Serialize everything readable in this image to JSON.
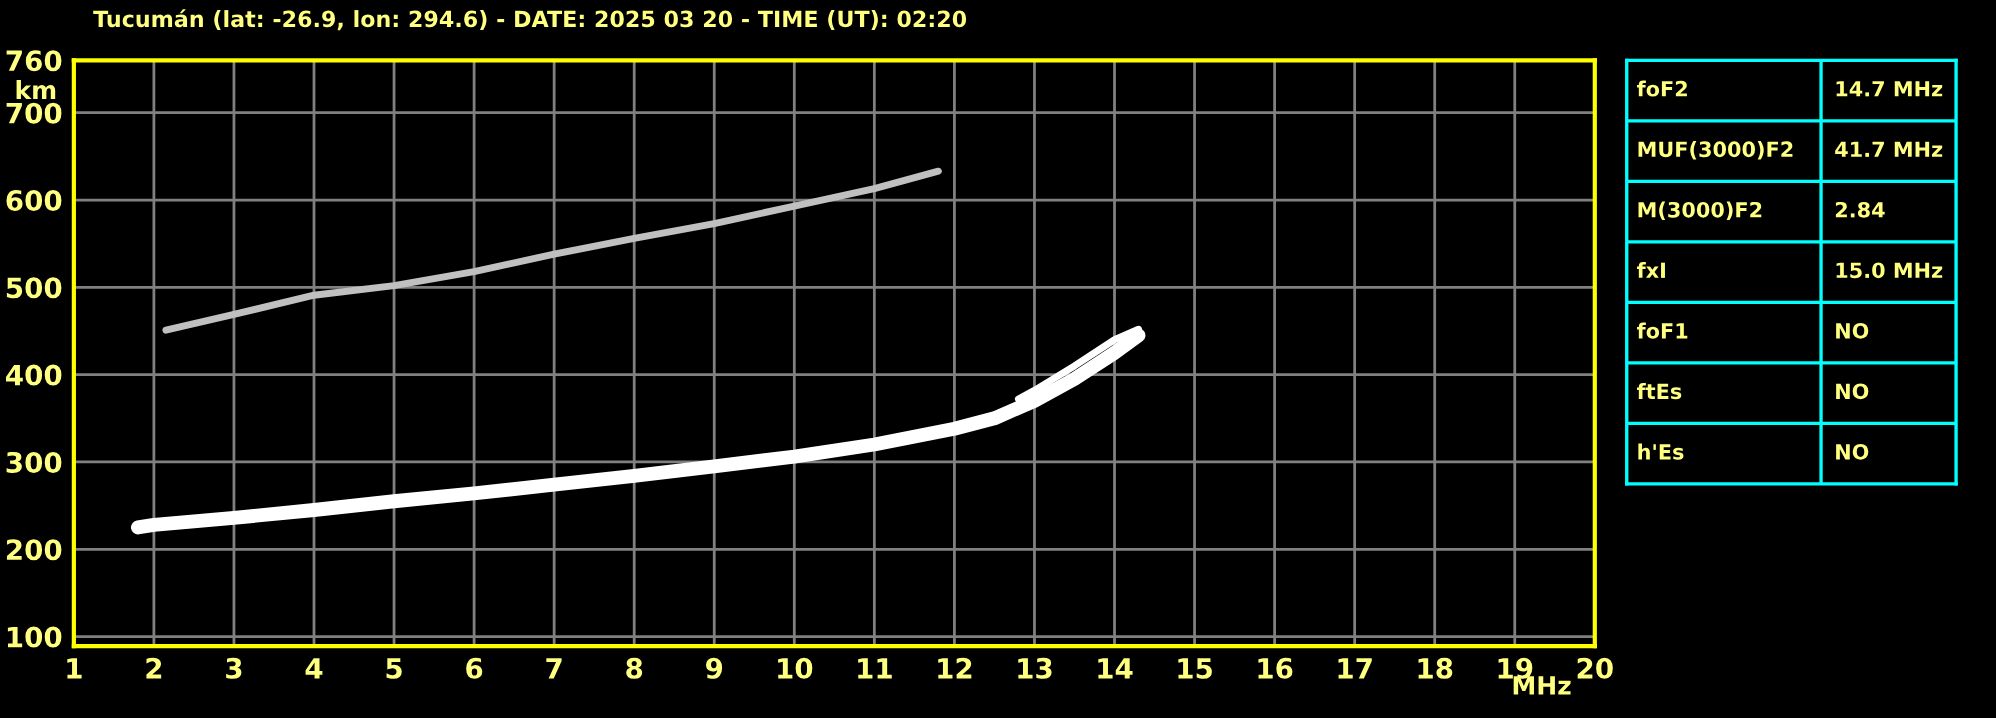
{
  "chart_data": [
    {
      "type": "line",
      "title": "Tucumán (lat: -26.9, lon: 294.6) - DATE: 2025 03 20 - TIME (UT): 02:20",
      "xlabel": "MHz",
      "ylabel": "km",
      "xlim": [
        1,
        20
      ],
      "xticks": [
        1,
        2,
        3,
        4,
        5,
        6,
        7,
        8,
        9,
        10,
        11,
        12,
        13,
        14,
        15,
        16,
        17,
        18,
        19,
        20
      ],
      "ylim": [
        89,
        760
      ],
      "yticks": [
        100,
        200,
        300,
        400,
        500,
        600,
        700,
        760
      ],
      "grid": true,
      "legend": false,
      "line_style": "solid",
      "series": [
        {
          "color": "#ffffff",
          "x": [
            1.8,
            2,
            3,
            4,
            5,
            6,
            7,
            8,
            9,
            10,
            11,
            12,
            12.5,
            13,
            13.5,
            14,
            14.3
          ],
          "values": [
            225,
            228,
            236,
            245,
            255,
            264,
            274,
            284,
            295,
            306,
            320,
            338,
            350,
            370,
            395,
            425,
            445
          ]
        },
        {
          "color": "#ffffff",
          "x": [
            12.8,
            13,
            13.5,
            14,
            14.3
          ],
          "values": [
            372,
            382,
            410,
            440,
            452
          ]
        },
        {
          "color": "#c0c0c0",
          "x": [
            2.15,
            3,
            4,
            5,
            6,
            7,
            8,
            9,
            10,
            11,
            11.8
          ],
          "values": [
            451,
            469,
            491,
            502,
            518,
            538,
            556,
            573,
            593,
            613,
            633
          ]
        }
      ]
    },
    {
      "type": "other",
      "annotations": [
        "foF2",
        "14.7 MHz",
        "MUF(3000)F2",
        "41.7 MHz",
        "M(3000)F2",
        "2.84",
        "fxI",
        "15.0 MHz",
        "foF1",
        "NO",
        "ftEs",
        "NO",
        "h'Es",
        "NO"
      ]
    }
  ]
}
